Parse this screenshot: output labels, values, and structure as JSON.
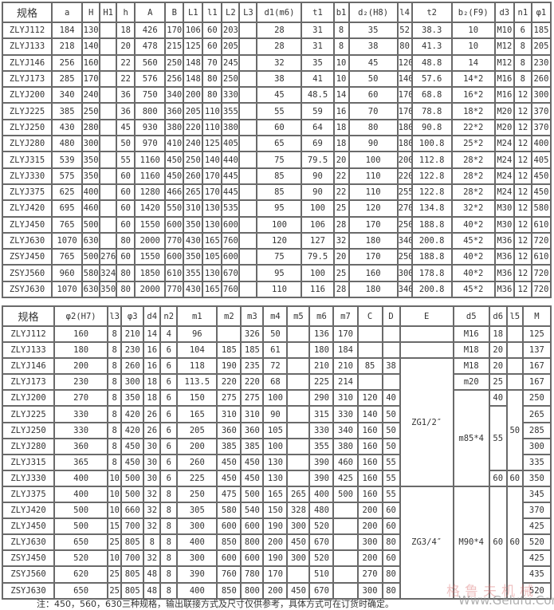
{
  "table1": {
    "headers": [
      "规格",
      "a",
      "H",
      "H1",
      "h",
      "A",
      "B",
      "L1",
      "l1",
      "L2",
      "L3",
      "d1(m6)",
      "t1",
      "b1",
      "d₂(H8)",
      "l4",
      "t2",
      "b₂(F9)",
      "d3",
      "n1",
      "φ1"
    ],
    "rows": [
      [
        "ZLYJ112",
        "184",
        "130",
        "",
        "18",
        "426",
        "170",
        "106",
        "60",
        "203",
        "",
        "28",
        "31",
        "8",
        "35",
        "52",
        "38.3",
        "10",
        "M10",
        "6",
        "185"
      ],
      [
        "ZLYJ133",
        "218",
        "140",
        "",
        "20",
        "478",
        "215",
        "125",
        "60",
        "205",
        "",
        "28",
        "31",
        "8",
        "38",
        "80",
        "41.3",
        "10",
        "M12",
        "8",
        "205"
      ],
      [
        "ZLYJ146",
        "256",
        "160",
        "",
        "22",
        "560",
        "250",
        "148",
        "70",
        "245",
        "",
        "32",
        "35",
        "10",
        "45",
        "120",
        "48.8",
        "14",
        "M12",
        "8",
        "230"
      ],
      [
        "ZLYJ173",
        "285",
        "170",
        "",
        "22",
        "576",
        "256",
        "148",
        "80",
        "250",
        "",
        "38",
        "41",
        "10",
        "50",
        "140",
        "57.6",
        "14*2",
        "M16",
        "8",
        "260"
      ],
      [
        "ZLYJ200",
        "340",
        "240",
        "",
        "36",
        "750",
        "340",
        "200",
        "80",
        "330",
        "",
        "45",
        "48.5",
        "14",
        "60",
        "170",
        "68.8",
        "16*2",
        "M16",
        "12",
        "300"
      ],
      [
        "ZLYJ225",
        "385",
        "250",
        "",
        "36",
        "800",
        "360",
        "205",
        "110",
        "355",
        "",
        "55",
        "59",
        "16",
        "70",
        "170",
        "78.8",
        "18*2",
        "M20",
        "12",
        "370"
      ],
      [
        "ZLYJ250",
        "430",
        "280",
        "",
        "45",
        "930",
        "380",
        "220",
        "110",
        "380",
        "",
        "60",
        "64",
        "18",
        "80",
        "180",
        "90.8",
        "22*2",
        "M20",
        "12",
        "370"
      ],
      [
        "ZLYJ280",
        "480",
        "300",
        "",
        "50",
        "970",
        "410",
        "240",
        "125",
        "405",
        "",
        "65",
        "69",
        "18",
        "90",
        "180",
        "100.8",
        "25*2",
        "M24",
        "12",
        "400"
      ],
      [
        "ZLYJ315",
        "539",
        "350",
        "",
        "55",
        "1160",
        "450",
        "250",
        "140",
        "440",
        "",
        "75",
        "79.5",
        "20",
        "100",
        "200",
        "112.8",
        "28*2",
        "M24",
        "12",
        "405"
      ],
      [
        "ZLYJ330",
        "575",
        "350",
        "",
        "60",
        "1160",
        "450",
        "260",
        "170",
        "445",
        "",
        "85",
        "90",
        "22",
        "110",
        "220",
        "122.8",
        "28*2",
        "M24",
        "12",
        "450"
      ],
      [
        "ZLYJ375",
        "625",
        "400",
        "",
        "60",
        "1280",
        "466",
        "265",
        "170",
        "445",
        "",
        "85",
        "90",
        "22",
        "110",
        "255",
        "122.8",
        "28*2",
        "M24",
        "12",
        "450"
      ],
      [
        "ZLYJ420",
        "695",
        "460",
        "",
        "60",
        "1420",
        "550",
        "310",
        "130",
        "535",
        "",
        "95",
        "100",
        "25",
        "120",
        "270",
        "134.8",
        "32*2",
        "M30",
        "12",
        "580"
      ],
      [
        "ZLYJ450",
        "765",
        "500",
        "",
        "60",
        "1550",
        "600",
        "350",
        "130",
        "600",
        "",
        "100",
        "106",
        "28",
        "170",
        "250",
        "188.8",
        "40*2",
        "M30",
        "12",
        "610"
      ],
      [
        "ZLYJ630",
        "1070",
        "630",
        "",
        "80",
        "2000",
        "770",
        "430",
        "165",
        "760",
        "",
        "120",
        "127",
        "32",
        "180",
        "340",
        "200.8",
        "45*2",
        "M36",
        "12",
        "720"
      ],
      [
        "ZSYJ450",
        "765",
        "500",
        "276",
        "60",
        "1550",
        "600",
        "350",
        "105",
        "600",
        "",
        "75",
        "79.5",
        "20",
        "170",
        "250",
        "188.8",
        "40*2",
        "M36",
        "12",
        "610"
      ],
      [
        "ZSYJ560",
        "960",
        "580",
        "324",
        "80",
        "1850",
        "610",
        "355",
        "130",
        "670",
        "",
        "95",
        "100",
        "25",
        "160",
        "300",
        "178.8",
        "40*2",
        "M36",
        "12",
        "720"
      ],
      [
        "ZSYJ630",
        "1070",
        "630",
        "350",
        "80",
        "2000",
        "770",
        "430",
        "165",
        "760",
        "",
        "110",
        "116",
        "28",
        "180",
        "340",
        "200.8",
        "45*2",
        "M36",
        "12",
        "720"
      ]
    ]
  },
  "table2": {
    "headers": [
      "规格",
      "φ2(H7)",
      "l3",
      "φ3",
      "d4",
      "n2",
      "m1",
      "m2",
      "m3",
      "m4",
      "m5",
      "m6",
      "m7",
      "C",
      "D",
      "E",
      "d5",
      "d6",
      "l5",
      "M"
    ],
    "rows": [
      [
        "ZLYJ112",
        "160",
        "8",
        "210",
        "14",
        "4",
        "96",
        "",
        "326",
        "50",
        "",
        "136",
        "170",
        "",
        "",
        "",
        "M16",
        "18",
        "",
        "125"
      ],
      [
        "ZLYJ133",
        "180",
        "8",
        "230",
        "16",
        "6",
        "104",
        "185",
        "185",
        "61",
        "",
        "180",
        "184",
        "",
        "",
        "",
        "M18",
        "20",
        "",
        "137"
      ],
      [
        "ZLYJ146",
        "200",
        "8",
        "260",
        "16",
        "6",
        "118",
        "190",
        "235",
        "72",
        "",
        "210",
        "210",
        "85",
        "38",
        "ZG1/2″",
        "M18",
        "20",
        "",
        "167"
      ],
      [
        "ZLYJ173",
        "230",
        "8",
        "300",
        "18",
        "6",
        "113.5",
        "220",
        "220",
        "68",
        "",
        "225",
        "214",
        "",
        "",
        "",
        "m20",
        "25",
        "",
        "167"
      ],
      [
        "ZLYJ200",
        "270",
        "8",
        "350",
        "18",
        "6",
        "150",
        "275",
        "275",
        "100",
        "",
        "290",
        "310",
        "120",
        "40",
        "",
        "m85*4",
        "40",
        "50",
        "250"
      ],
      [
        "ZLYJ225",
        "330",
        "8",
        "420",
        "26",
        "6",
        "165",
        "310",
        "310",
        "90",
        "",
        "315",
        "330",
        "140",
        "50",
        "",
        "",
        "55",
        "",
        "265"
      ],
      [
        "ZLYJ250",
        "330",
        "8",
        "420",
        "26",
        "6",
        "205",
        "360",
        "360",
        "105",
        "",
        "330",
        "340",
        "160",
        "50",
        "",
        "",
        "",
        "",
        "285"
      ],
      [
        "ZLYJ280",
        "360",
        "8",
        "450",
        "30",
        "6",
        "200",
        "385",
        "385",
        "100",
        "",
        "355",
        "380",
        "160",
        "50",
        "",
        "",
        "",
        "",
        "300"
      ],
      [
        "ZLYJ315",
        "365",
        "8",
        "450",
        "30",
        "6",
        "260",
        "450",
        "450",
        "130",
        "",
        "390",
        "460",
        "160",
        "55",
        "",
        "",
        "",
        "",
        "335"
      ],
      [
        "ZLYJ330",
        "400",
        "10",
        "500",
        "30",
        "6",
        "225",
        "450",
        "450",
        "130",
        "",
        "390",
        "425",
        "160",
        "55",
        "",
        "",
        "60",
        "60",
        "350"
      ],
      [
        "ZLYJ375",
        "400",
        "10",
        "500",
        "32",
        "8",
        "250",
        "475",
        "500",
        "165",
        "265",
        "400",
        "500",
        "160",
        "55",
        "ZG3/4″",
        "M90*4",
        "60",
        "60",
        "345"
      ],
      [
        "ZLYJ420",
        "500",
        "10",
        "660",
        "32",
        "8",
        "305",
        "580",
        "540",
        "150",
        "328",
        "480",
        "",
        "200",
        "60",
        "",
        "",
        "",
        "",
        "370"
      ],
      [
        "ZLYJ450",
        "500",
        "15",
        "700",
        "32",
        "8",
        "300",
        "600",
        "600",
        "190",
        "300",
        "520",
        "",
        "200",
        "60",
        "",
        "",
        "",
        "",
        "425"
      ],
      [
        "ZLYJ630",
        "650",
        "25",
        "805",
        "8",
        "8",
        "400",
        "850",
        "800",
        "200",
        "450",
        "670",
        "",
        "300",
        "80",
        "",
        "",
        "",
        "",
        "520"
      ],
      [
        "ZSYJ450",
        "520",
        "10",
        "700",
        "32",
        "8",
        "300",
        "600",
        "600",
        "190",
        "300",
        "520",
        "",
        "200",
        "60",
        "",
        "",
        "",
        "",
        "425"
      ],
      [
        "ZSYJ560",
        "620",
        "25",
        "805",
        "48",
        "8",
        "390",
        "760",
        "780",
        "170",
        "",
        "510",
        "",
        "270",
        "80",
        "",
        "",
        "",
        "",
        "435"
      ],
      [
        "ZSYJ630",
        "650",
        "25",
        "805",
        "48",
        "8",
        "400",
        "850",
        "800",
        "200",
        "450",
        "670",
        "",
        "300",
        "80",
        "",
        "",
        "",
        "",
        "520"
      ]
    ]
  },
  "note": "注：450，560，630三种规格，输出联接方式及尺寸仅供参考，具体方式可在订货时确定。",
  "watermark": {
    "cn": "格鲁夫机械",
    "url": "Www.Gelufu.Com"
  }
}
